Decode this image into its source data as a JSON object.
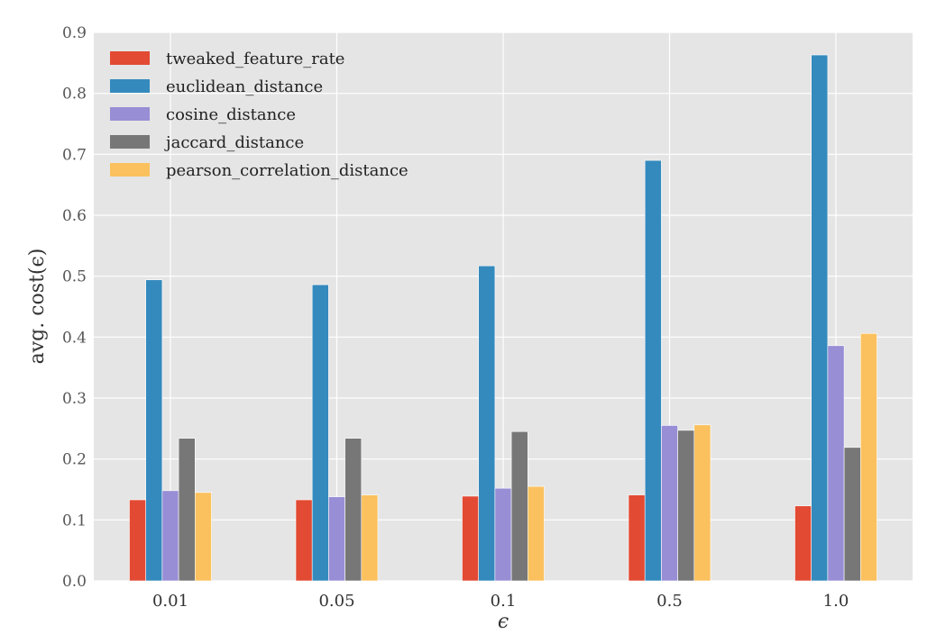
{
  "chart_data": {
    "type": "bar",
    "title": "",
    "xlabel": "ϵ",
    "ylabel": "avg. cost(ϵ)",
    "ylim": [
      0.0,
      0.9
    ],
    "yticks": [
      "0.0",
      "0.1",
      "0.2",
      "0.3",
      "0.4",
      "0.5",
      "0.6",
      "0.7",
      "0.8",
      "0.9"
    ],
    "categories": [
      "0.01",
      "0.05",
      "0.1",
      "0.5",
      "1.0"
    ],
    "grid": true,
    "legend_position": "top-left",
    "series": [
      {
        "name": "tweaked_feature_rate",
        "color": "#E24A33",
        "values": [
          0.133,
          0.133,
          0.139,
          0.141,
          0.123
        ]
      },
      {
        "name": "euclidean_distance",
        "color": "#348ABD",
        "values": [
          0.494,
          0.486,
          0.517,
          0.69,
          0.863
        ]
      },
      {
        "name": "cosine_distance",
        "color": "#988ED5",
        "values": [
          0.148,
          0.138,
          0.152,
          0.255,
          0.386
        ]
      },
      {
        "name": "jaccard_distance",
        "color": "#777777",
        "values": [
          0.234,
          0.234,
          0.245,
          0.247,
          0.219
        ]
      },
      {
        "name": "pearson_correlation_distance",
        "color": "#FBC15E",
        "values": [
          0.145,
          0.141,
          0.155,
          0.256,
          0.406
        ]
      }
    ]
  }
}
